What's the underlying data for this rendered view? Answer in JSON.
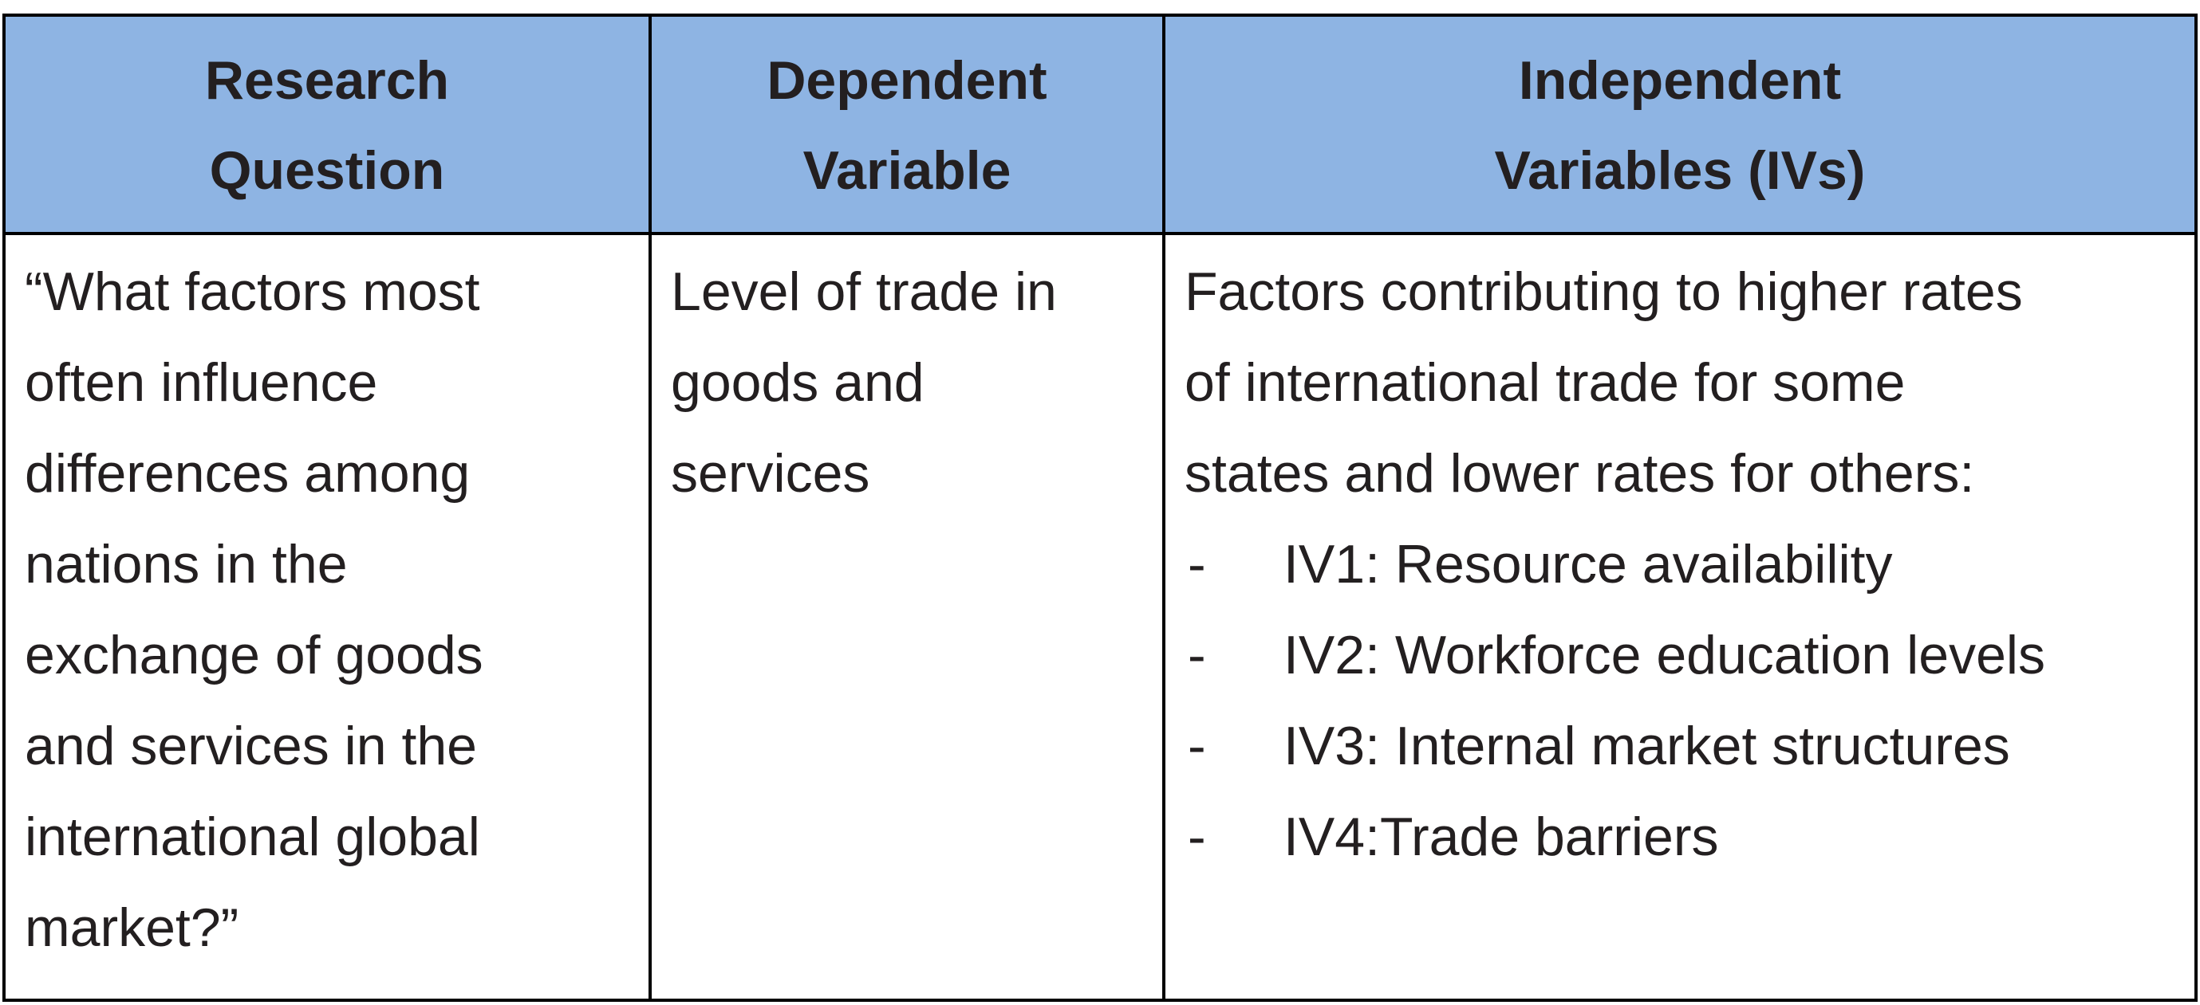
{
  "table": {
    "headers": [
      [
        "Research",
        "Question"
      ],
      [
        "Dependent",
        "Variable"
      ],
      [
        "Independent",
        "Variables (IVs)"
      ]
    ],
    "research_question_lines": [
      "“What factors most",
      "often influence",
      "differences among",
      "nations in the",
      "exchange of goods",
      "and services in the",
      "international global",
      "market?”"
    ],
    "dependent_variable_lines": [
      "Level of trade in",
      "goods and",
      "services"
    ],
    "independent_intro_lines": [
      "Factors contributing to higher rates",
      "of international trade for some",
      "states and lower rates for others:"
    ],
    "iv_bullet": "-",
    "independent_variables": [
      "IV1: Resource availability",
      "IV2: Workforce education levels",
      "IV3: Internal market structures",
      "IV4:Trade barriers"
    ]
  },
  "colors": {
    "header_fill": "#8eb4e3",
    "border": "#000000",
    "text": "#231f20"
  }
}
